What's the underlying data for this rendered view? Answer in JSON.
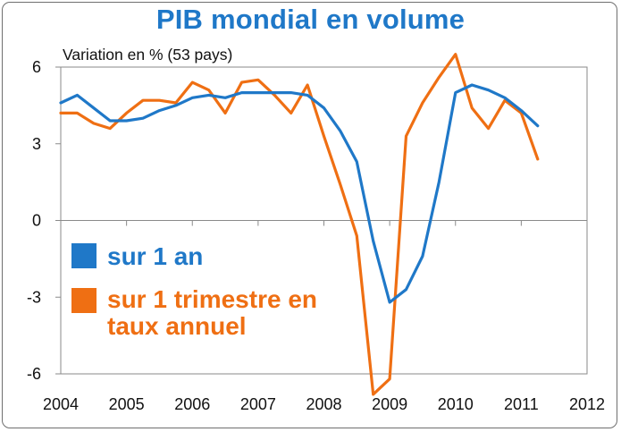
{
  "chart_data": {
    "type": "line",
    "title": "PIB mondial en volume",
    "subtitle": "Variation en % (53 pays)",
    "xlim": [
      2004,
      2012
    ],
    "ylim": [
      -6,
      6
    ],
    "x_ticks": [
      "2004",
      "2005",
      "2006",
      "2007",
      "2008",
      "2009",
      "2010",
      "2011",
      "2012"
    ],
    "y_ticks": [
      "6",
      "3",
      "0",
      "-3",
      "-6"
    ],
    "grid": false,
    "legend_placement": "left-middle",
    "series": [
      {
        "name": "sur 1 an",
        "color": "#1f78c8",
        "x": [
          2004.0,
          2004.25,
          2004.5,
          2004.75,
          2005.0,
          2005.25,
          2005.5,
          2005.75,
          2006.0,
          2006.25,
          2006.5,
          2006.75,
          2007.0,
          2007.25,
          2007.5,
          2007.75,
          2008.0,
          2008.25,
          2008.5,
          2008.75,
          2009.0,
          2009.25,
          2009.5,
          2009.75,
          2010.0,
          2010.25,
          2010.5,
          2010.75,
          2011.0,
          2011.25
        ],
        "values": [
          4.6,
          4.9,
          4.4,
          3.9,
          3.9,
          4.0,
          4.3,
          4.5,
          4.8,
          4.9,
          4.8,
          5.0,
          5.0,
          5.0,
          5.0,
          4.9,
          4.4,
          3.5,
          2.3,
          -0.8,
          -3.2,
          -2.7,
          -1.4,
          1.5,
          5.0,
          5.3,
          5.1,
          4.8,
          4.3,
          3.7
        ]
      },
      {
        "name": "sur 1 trimestre en taux annuel",
        "color": "#ef6f13",
        "x": [
          2004.0,
          2004.25,
          2004.5,
          2004.75,
          2005.0,
          2005.25,
          2005.5,
          2005.75,
          2006.0,
          2006.25,
          2006.5,
          2006.75,
          2007.0,
          2007.25,
          2007.5,
          2007.75,
          2008.0,
          2008.25,
          2008.5,
          2008.75,
          2009.0,
          2009.25,
          2009.5,
          2009.75,
          2010.0,
          2010.25,
          2010.5,
          2010.75,
          2011.0,
          2011.25
        ],
        "values": [
          4.2,
          4.2,
          3.8,
          3.6,
          4.2,
          4.7,
          4.7,
          4.6,
          5.4,
          5.1,
          4.2,
          5.4,
          5.5,
          4.9,
          4.2,
          5.3,
          3.3,
          1.4,
          -0.6,
          -6.8,
          -6.2,
          3.3,
          4.6,
          5.6,
          6.5,
          4.4,
          3.6,
          4.7,
          4.2,
          2.4
        ]
      }
    ]
  }
}
